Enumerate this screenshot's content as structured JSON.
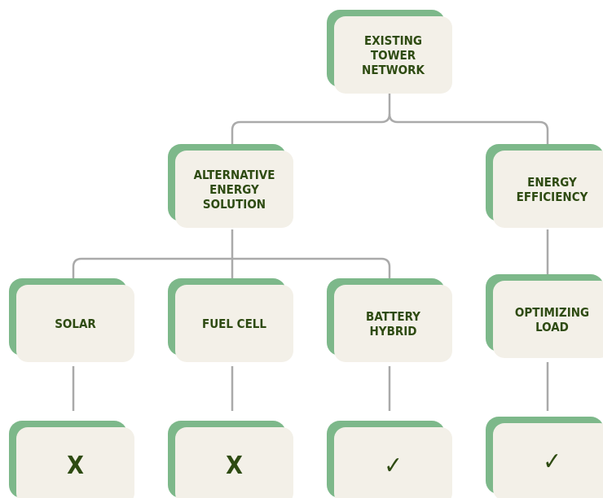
{
  "nodes": [
    {
      "label": [
        "EXISTING",
        "TOWER",
        "NETWORK"
      ]
    },
    {
      "label": [
        "ALTERNATIVE",
        "ENERGY",
        "SOLUTION"
      ]
    },
    {
      "label": [
        "ENERGY",
        "EFFICIENCY"
      ]
    },
    {
      "label": [
        "SOLAR"
      ]
    },
    {
      "label": [
        "FUEL CELL"
      ]
    },
    {
      "label": [
        "BATTERY",
        "HYBRID"
      ]
    },
    {
      "label": [
        "OPTIMIZING",
        "LOAD"
      ]
    },
    {
      "label": [
        "X"
      ]
    },
    {
      "label": [
        "X"
      ]
    },
    {
      "label": [
        "✓"
      ]
    },
    {
      "label": [
        "✓"
      ]
    }
  ]
}
